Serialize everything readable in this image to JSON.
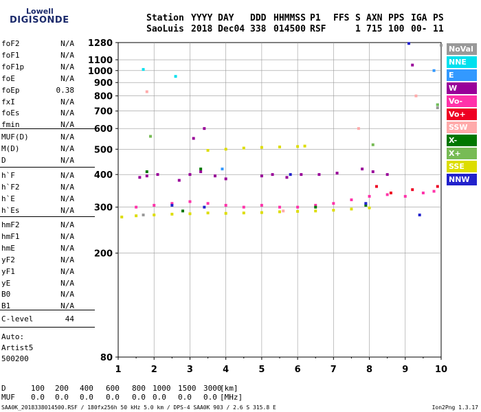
{
  "logo": {
    "line1": "Lowell",
    "line2": "DIGISONDE"
  },
  "header": {
    "row1": [
      "Station",
      "YYYY",
      "DAY",
      "DDD",
      "HHMMSS",
      "P1",
      "FFS",
      "S",
      "AXN",
      "PPS",
      "IGA",
      "PS"
    ],
    "row2": [
      "SaoLuis",
      "2018",
      "Dec04",
      "338",
      "014500",
      "RSF",
      "1",
      "715",
      "100",
      "00-",
      "11"
    ]
  },
  "params": {
    "group1": [
      {
        "label": "foF2",
        "value": "N/A"
      },
      {
        "label": "foF1",
        "value": "N/A"
      },
      {
        "label": "foF1p",
        "value": "N/A"
      },
      {
        "label": "foE",
        "value": "N/A"
      },
      {
        "label": "foEp",
        "value": "0.38"
      },
      {
        "label": "fxI",
        "value": "N/A"
      },
      {
        "label": "foEs",
        "value": "N/A"
      },
      {
        "label": "fmin",
        "value": "N/A"
      }
    ],
    "group2": [
      {
        "label": "MUF(D)",
        "value": "N/A"
      },
      {
        "label": "M(D)",
        "value": "N/A"
      },
      {
        "label": "D",
        "value": "N/A"
      }
    ],
    "group3": [
      {
        "label": "h`F",
        "value": "N/A"
      },
      {
        "label": "h`F2",
        "value": "N/A"
      },
      {
        "label": "h`E",
        "value": "N/A"
      },
      {
        "label": "h`Es",
        "value": "N/A"
      }
    ],
    "group4": [
      {
        "label": "hmF2",
        "value": "N/A"
      },
      {
        "label": "hmF1",
        "value": "N/A"
      },
      {
        "label": "hmE",
        "value": "N/A"
      },
      {
        "label": "yF2",
        "value": "N/A"
      },
      {
        "label": "yF1",
        "value": "N/A"
      },
      {
        "label": "yE",
        "value": "N/A"
      },
      {
        "label": "B0",
        "value": "N/A"
      },
      {
        "label": "B1",
        "value": "N/A"
      }
    ],
    "clevel": {
      "label": "C-level",
      "value": "44"
    }
  },
  "auto": {
    "line1": "Auto:",
    "line2": "Artist5",
    "line3": "500200"
  },
  "legend": [
    {
      "label": "NoVal",
      "color": "#999999",
      "text_color": "#ffffff"
    },
    {
      "label": "NNE",
      "color": "#00e0ee",
      "text_color": "#ffffff"
    },
    {
      "label": "E",
      "color": "#3399ff",
      "text_color": "#ffffff"
    },
    {
      "label": "W",
      "color": "#990099",
      "text_color": "#ffffff"
    },
    {
      "label": "Vo-",
      "color": "#ff33aa",
      "text_color": "#ffffff"
    },
    {
      "label": "Vo+",
      "color": "#ee0022",
      "text_color": "#ffffff"
    },
    {
      "label": "SSW",
      "color": "#ffaaaa",
      "text_color": "#ffffff"
    },
    {
      "label": "X-",
      "color": "#007700",
      "text_color": "#ffffff"
    },
    {
      "label": "X+",
      "color": "#77bb55",
      "text_color": "#ffffff"
    },
    {
      "label": "SSE",
      "color": "#dddd00",
      "text_color": "#ffffff"
    },
    {
      "label": "NNW",
      "color": "#2222cc",
      "text_color": "#ffffff"
    }
  ],
  "bottom_table": {
    "row_d": {
      "label": "D",
      "values": [
        "100",
        "200",
        "400",
        "600",
        "800",
        "1000",
        "1500",
        "3000"
      ],
      "unit": "[km]"
    },
    "row_muf": {
      "label": "MUF",
      "values": [
        "0.0",
        "0.0",
        "0.0",
        "0.0",
        "0.0",
        "0.0",
        "0.0",
        "0.0"
      ],
      "unit": "[MHz]"
    }
  },
  "footer": {
    "left": "SAA0K_2018338014500.RSF / 180fx256h 50 kHz 5.0 km / DPS-4 SAA0K 903 / 2.6 S 315.8 E",
    "right": "Ion2Png 1.3.17"
  },
  "chart_data": {
    "type": "scatter",
    "title": "",
    "xlabel": "",
    "ylabel": "",
    "xlim": [
      1,
      10
    ],
    "ylim": [
      80,
      1280
    ],
    "y_scale": "log",
    "x_ticks": [
      1,
      2,
      3,
      4,
      5,
      6,
      7,
      8,
      9,
      10
    ],
    "y_ticks": [
      80,
      200,
      300,
      400,
      500,
      600,
      700,
      800,
      900,
      1000,
      1100,
      1280
    ],
    "grid": true,
    "series": [
      {
        "name": "W",
        "color": "#990099",
        "points": [
          {
            "x": 1.6,
            "y": 390
          },
          {
            "x": 1.8,
            "y": 395
          },
          {
            "x": 2.1,
            "y": 400
          },
          {
            "x": 2.7,
            "y": 380
          },
          {
            "x": 3.0,
            "y": 400
          },
          {
            "x": 3.3,
            "y": 410
          },
          {
            "x": 3.7,
            "y": 395
          },
          {
            "x": 4.0,
            "y": 385
          },
          {
            "x": 5.0,
            "y": 395
          },
          {
            "x": 5.3,
            "y": 400
          },
          {
            "x": 5.7,
            "y": 390
          },
          {
            "x": 6.1,
            "y": 400
          },
          {
            "x": 6.6,
            "y": 400
          },
          {
            "x": 7.1,
            "y": 405
          },
          {
            "x": 7.8,
            "y": 420
          },
          {
            "x": 8.1,
            "y": 410
          },
          {
            "x": 8.5,
            "y": 400
          },
          {
            "x": 3.1,
            "y": 550
          },
          {
            "x": 3.4,
            "y": 600
          },
          {
            "x": 9.2,
            "y": 1050
          }
        ]
      },
      {
        "name": "Vo-",
        "color": "#ff33aa",
        "points": [
          {
            "x": 1.5,
            "y": 300
          },
          {
            "x": 2.0,
            "y": 305
          },
          {
            "x": 2.5,
            "y": 310
          },
          {
            "x": 3.0,
            "y": 315
          },
          {
            "x": 3.5,
            "y": 310
          },
          {
            "x": 4.0,
            "y": 305
          },
          {
            "x": 4.5,
            "y": 300
          },
          {
            "x": 5.0,
            "y": 305
          },
          {
            "x": 5.5,
            "y": 300
          },
          {
            "x": 6.0,
            "y": 300
          },
          {
            "x": 6.5,
            "y": 305
          },
          {
            "x": 7.0,
            "y": 310
          },
          {
            "x": 7.5,
            "y": 320
          },
          {
            "x": 8.0,
            "y": 330
          },
          {
            "x": 8.5,
            "y": 335
          },
          {
            "x": 9.0,
            "y": 330
          },
          {
            "x": 9.5,
            "y": 340
          },
          {
            "x": 9.8,
            "y": 345
          }
        ]
      },
      {
        "name": "SSE",
        "color": "#dddd00",
        "points": [
          {
            "x": 1.1,
            "y": 275
          },
          {
            "x": 1.5,
            "y": 278
          },
          {
            "x": 2.0,
            "y": 280
          },
          {
            "x": 2.5,
            "y": 282
          },
          {
            "x": 3.0,
            "y": 283
          },
          {
            "x": 3.5,
            "y": 285
          },
          {
            "x": 4.0,
            "y": 284
          },
          {
            "x": 4.5,
            "y": 285
          },
          {
            "x": 5.0,
            "y": 286
          },
          {
            "x": 5.5,
            "y": 288
          },
          {
            "x": 6.0,
            "y": 289
          },
          {
            "x": 6.5,
            "y": 290
          },
          {
            "x": 7.0,
            "y": 292
          },
          {
            "x": 7.5,
            "y": 295
          },
          {
            "x": 8.0,
            "y": 298
          },
          {
            "x": 3.5,
            "y": 495
          },
          {
            "x": 4.0,
            "y": 500
          },
          {
            "x": 4.5,
            "y": 505
          },
          {
            "x": 5.0,
            "y": 508
          },
          {
            "x": 5.5,
            "y": 510
          },
          {
            "x": 6.0,
            "y": 512
          },
          {
            "x": 6.2,
            "y": 514
          }
        ]
      },
      {
        "name": "X-",
        "color": "#007700",
        "points": [
          {
            "x": 1.8,
            "y": 410
          },
          {
            "x": 2.8,
            "y": 290
          },
          {
            "x": 3.3,
            "y": 420
          },
          {
            "x": 6.5,
            "y": 300
          },
          {
            "x": 7.9,
            "y": 305
          }
        ]
      },
      {
        "name": "Vo+",
        "color": "#ee0022",
        "points": [
          {
            "x": 8.2,
            "y": 360
          },
          {
            "x": 8.6,
            "y": 340
          },
          {
            "x": 9.2,
            "y": 350
          },
          {
            "x": 9.9,
            "y": 360
          }
        ]
      },
      {
        "name": "NNW",
        "color": "#2222cc",
        "points": [
          {
            "x": 2.5,
            "y": 305
          },
          {
            "x": 3.4,
            "y": 300
          },
          {
            "x": 5.8,
            "y": 400
          },
          {
            "x": 7.9,
            "y": 310
          },
          {
            "x": 9.1,
            "y": 1270
          },
          {
            "x": 9.4,
            "y": 280
          }
        ]
      },
      {
        "name": "SSW",
        "color": "#ffaaaa",
        "points": [
          {
            "x": 1.8,
            "y": 830
          },
          {
            "x": 5.6,
            "y": 290
          },
          {
            "x": 7.7,
            "y": 600
          },
          {
            "x": 9.3,
            "y": 800
          }
        ]
      },
      {
        "name": "NNE",
        "color": "#00e0ee",
        "points": [
          {
            "x": 1.7,
            "y": 1010
          },
          {
            "x": 2.6,
            "y": 950
          },
          {
            "x": 9.9,
            "y": 740
          }
        ]
      },
      {
        "name": "X+",
        "color": "#77bb55",
        "points": [
          {
            "x": 1.9,
            "y": 560
          },
          {
            "x": 8.1,
            "y": 520
          },
          {
            "x": 9.9,
            "y": 740
          }
        ]
      },
      {
        "name": "E",
        "color": "#3399ff",
        "points": [
          {
            "x": 3.9,
            "y": 420
          },
          {
            "x": 9.8,
            "y": 1000
          }
        ]
      },
      {
        "name": "NoVal",
        "color": "#999999",
        "points": [
          {
            "x": 1.7,
            "y": 280
          },
          {
            "x": 9.9,
            "y": 720
          },
          {
            "x": 10.0,
            "y": 1250
          }
        ]
      }
    ]
  }
}
